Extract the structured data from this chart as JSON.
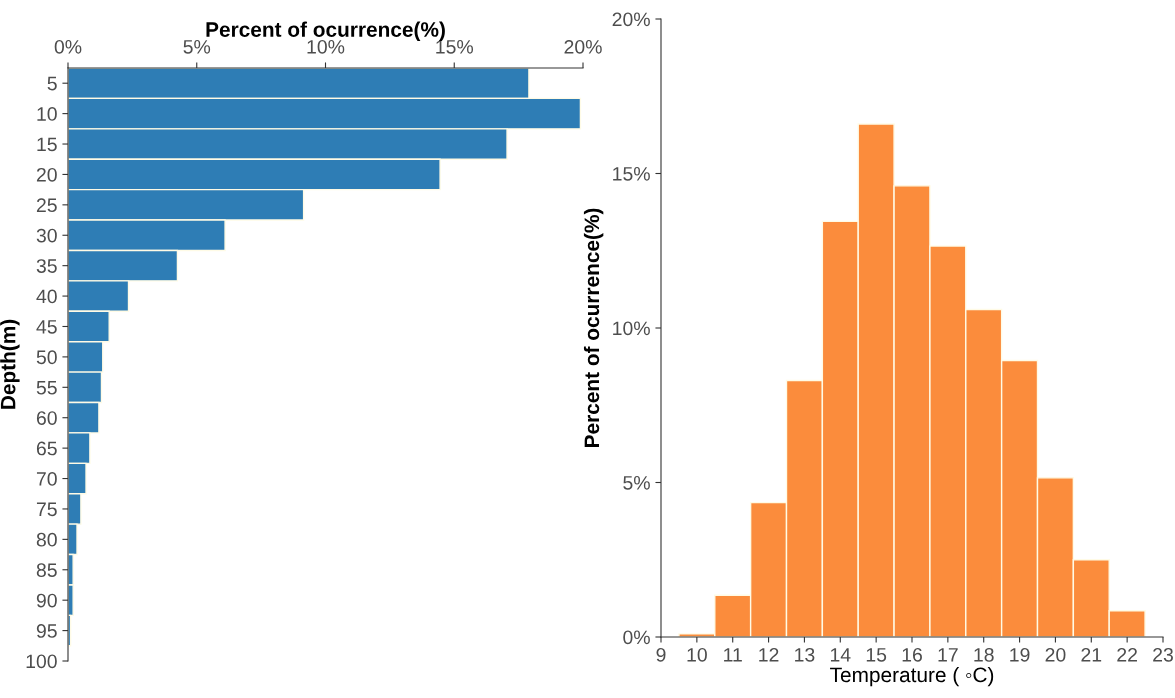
{
  "chart_data": [
    {
      "type": "histogram",
      "orientation": "horizontal",
      "xlabel": "Percent of ocurrence(%)",
      "ylabel": "Depth(m)",
      "color": "#2e7db5",
      "bins": [
        2.5,
        7.5,
        12.5,
        17.5,
        22.5,
        27.5,
        32.5,
        37.5,
        42.5,
        47.5,
        52.5,
        57.5,
        62.5,
        67.5,
        72.5,
        77.5,
        82.5,
        87.5,
        92.5,
        97.5
      ],
      "values": [
        17.9,
        19.9,
        17.05,
        14.45,
        9.15,
        6.1,
        4.25,
        2.35,
        1.6,
        1.35,
        1.3,
        1.2,
        0.85,
        0.7,
        0.5,
        0.35,
        0.2,
        0.2,
        0.1
      ],
      "xlim": [
        0,
        20
      ],
      "xticks": [
        {
          "value": 0,
          "label": "0%"
        },
        {
          "value": 5,
          "label": "5%"
        },
        {
          "value": 10,
          "label": "10%"
        },
        {
          "value": 15,
          "label": "15%"
        },
        {
          "value": 20,
          "label": "20%"
        }
      ],
      "ylim": [
        100,
        2.5
      ],
      "yticks": [
        5,
        10,
        15,
        20,
        25,
        30,
        35,
        40,
        45,
        50,
        55,
        60,
        65,
        70,
        75,
        80,
        85,
        90,
        95,
        100
      ],
      "grid": false,
      "legend": false
    },
    {
      "type": "histogram",
      "xlabel": "Temperature ( ◦C)",
      "ylabel": "Percent of ocurrence(%)",
      "color": "#fb8c3c",
      "bins": [
        9.5,
        10.5,
        11.5,
        12.5,
        13.5,
        14.5,
        15.5,
        16.5,
        17.5,
        18.5,
        19.5,
        20.5,
        21.5,
        22.5
      ],
      "values": [
        0.1,
        1.35,
        4.35,
        8.3,
        13.45,
        16.6,
        14.6,
        12.65,
        10.6,
        8.95,
        5.15,
        2.5,
        0.85
      ],
      "xlim": [
        9,
        23
      ],
      "xticks": [
        9,
        10,
        11,
        12,
        13,
        14,
        15,
        16,
        17,
        18,
        19,
        20,
        21,
        22,
        23
      ],
      "ylim": [
        0,
        20
      ],
      "yticks": [
        {
          "value": 0,
          "label": "0%"
        },
        {
          "value": 5,
          "label": "5%"
        },
        {
          "value": 10,
          "label": "10%"
        },
        {
          "value": 15,
          "label": "15%"
        },
        {
          "value": 20,
          "label": "20%"
        }
      ],
      "grid": false,
      "legend": false
    }
  ]
}
